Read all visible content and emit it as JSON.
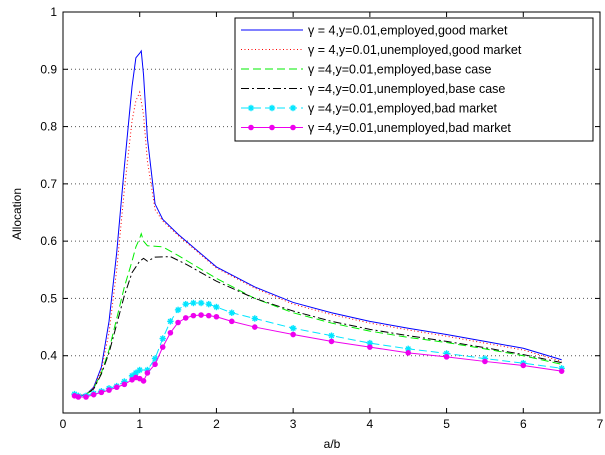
{
  "chart_data": {
    "type": "line",
    "title": "",
    "xlabel": "a/b",
    "ylabel": "Allocation",
    "xlim": [
      0,
      7
    ],
    "ylim": [
      0.3,
      1.0
    ],
    "xticks": [
      0,
      1,
      2,
      3,
      4,
      5,
      6,
      7
    ],
    "yticks": [
      0.4,
      0.5,
      0.6,
      0.7,
      0.8,
      0.9,
      1.0
    ],
    "ytick_labels": [
      "0.4",
      "0.5",
      "0.6",
      "0.7",
      "0.8",
      "0.9",
      "1"
    ],
    "grid": "dotted",
    "legend_position": "top-right",
    "series": [
      {
        "name": "γ = 4,y=0.01,employed,good market",
        "color": "#0000ff",
        "dash": "none",
        "marker": "none",
        "points": [
          [
            0.15,
            0.333
          ],
          [
            0.2,
            0.33
          ],
          [
            0.3,
            0.332
          ],
          [
            0.4,
            0.345
          ],
          [
            0.5,
            0.38
          ],
          [
            0.6,
            0.46
          ],
          [
            0.7,
            0.58
          ],
          [
            0.8,
            0.73
          ],
          [
            0.9,
            0.87
          ],
          [
            0.95,
            0.92
          ],
          [
            1.0,
            0.928
          ],
          [
            1.02,
            0.932
          ],
          [
            1.05,
            0.89
          ],
          [
            1.1,
            0.78
          ],
          [
            1.2,
            0.665
          ],
          [
            1.3,
            0.638
          ],
          [
            1.5,
            0.612
          ],
          [
            2.0,
            0.555
          ],
          [
            2.5,
            0.52
          ],
          [
            3.0,
            0.493
          ],
          [
            3.5,
            0.475
          ],
          [
            4.0,
            0.46
          ],
          [
            4.5,
            0.448
          ],
          [
            5.0,
            0.437
          ],
          [
            5.5,
            0.425
          ],
          [
            6.0,
            0.413
          ],
          [
            6.5,
            0.393
          ]
        ]
      },
      {
        "name": "γ = 4,y=0.01,unemployed,good market",
        "color": "#ff0000",
        "dash": "1,2.5",
        "marker": "none",
        "points": [
          [
            0.15,
            0.333
          ],
          [
            0.2,
            0.33
          ],
          [
            0.3,
            0.332
          ],
          [
            0.4,
            0.345
          ],
          [
            0.5,
            0.375
          ],
          [
            0.6,
            0.44
          ],
          [
            0.7,
            0.55
          ],
          [
            0.8,
            0.69
          ],
          [
            0.9,
            0.81
          ],
          [
            0.95,
            0.845
          ],
          [
            1.0,
            0.86
          ],
          [
            1.05,
            0.82
          ],
          [
            1.1,
            0.74
          ],
          [
            1.2,
            0.655
          ],
          [
            1.3,
            0.635
          ],
          [
            1.5,
            0.61
          ],
          [
            2.0,
            0.553
          ],
          [
            2.5,
            0.518
          ],
          [
            3.0,
            0.49
          ],
          [
            3.5,
            0.472
          ],
          [
            4.0,
            0.457
          ],
          [
            4.5,
            0.445
          ],
          [
            5.0,
            0.434
          ],
          [
            5.5,
            0.422
          ],
          [
            6.0,
            0.41
          ],
          [
            6.5,
            0.39
          ]
        ]
      },
      {
        "name": "γ =4,y=0.01,employed,base case",
        "color": "#00ee00",
        "dash": "8,4",
        "marker": "none",
        "points": [
          [
            0.15,
            0.333
          ],
          [
            0.2,
            0.33
          ],
          [
            0.3,
            0.332
          ],
          [
            0.4,
            0.343
          ],
          [
            0.5,
            0.37
          ],
          [
            0.6,
            0.41
          ],
          [
            0.7,
            0.465
          ],
          [
            0.8,
            0.52
          ],
          [
            0.9,
            0.565
          ],
          [
            0.95,
            0.59
          ],
          [
            1.0,
            0.605
          ],
          [
            1.02,
            0.613
          ],
          [
            1.05,
            0.6
          ],
          [
            1.1,
            0.592
          ],
          [
            1.3,
            0.59
          ],
          [
            1.5,
            0.575
          ],
          [
            2.0,
            0.535
          ],
          [
            2.5,
            0.5
          ],
          [
            3.0,
            0.475
          ],
          [
            3.5,
            0.457
          ],
          [
            4.0,
            0.443
          ],
          [
            4.5,
            0.432
          ],
          [
            5.0,
            0.423
          ],
          [
            5.5,
            0.412
          ],
          [
            6.0,
            0.4
          ],
          [
            6.5,
            0.385
          ]
        ]
      },
      {
        "name": "γ =4,y=0.01,unemployed,base case",
        "color": "#000000",
        "dash": "8,3,2,3",
        "marker": "none",
        "points": [
          [
            0.15,
            0.333
          ],
          [
            0.2,
            0.33
          ],
          [
            0.3,
            0.332
          ],
          [
            0.4,
            0.342
          ],
          [
            0.5,
            0.368
          ],
          [
            0.6,
            0.405
          ],
          [
            0.7,
            0.455
          ],
          [
            0.8,
            0.505
          ],
          [
            0.9,
            0.545
          ],
          [
            0.95,
            0.555
          ],
          [
            1.0,
            0.565
          ],
          [
            1.05,
            0.57
          ],
          [
            1.1,
            0.565
          ],
          [
            1.2,
            0.572
          ],
          [
            1.4,
            0.573
          ],
          [
            1.6,
            0.56
          ],
          [
            2.0,
            0.53
          ],
          [
            2.5,
            0.5
          ],
          [
            3.0,
            0.478
          ],
          [
            3.5,
            0.46
          ],
          [
            4.0,
            0.446
          ],
          [
            4.5,
            0.435
          ],
          [
            5.0,
            0.425
          ],
          [
            5.5,
            0.414
          ],
          [
            6.0,
            0.402
          ],
          [
            6.5,
            0.388
          ]
        ]
      },
      {
        "name": "γ =4,y=0.01,employed,bad market",
        "color": "#00e5ff",
        "dash": "8,4",
        "marker": "star",
        "points": [
          [
            0.15,
            0.333
          ],
          [
            0.2,
            0.33
          ],
          [
            0.3,
            0.33
          ],
          [
            0.4,
            0.334
          ],
          [
            0.5,
            0.338
          ],
          [
            0.6,
            0.343
          ],
          [
            0.7,
            0.347
          ],
          [
            0.8,
            0.355
          ],
          [
            0.9,
            0.365
          ],
          [
            0.95,
            0.37
          ],
          [
            1.0,
            0.375
          ],
          [
            1.1,
            0.375
          ],
          [
            1.2,
            0.395
          ],
          [
            1.3,
            0.43
          ],
          [
            1.4,
            0.46
          ],
          [
            1.5,
            0.48
          ],
          [
            1.6,
            0.49
          ],
          [
            1.7,
            0.492
          ],
          [
            1.8,
            0.492
          ],
          [
            1.9,
            0.49
          ],
          [
            2.0,
            0.485
          ],
          [
            2.2,
            0.475
          ],
          [
            2.5,
            0.465
          ],
          [
            3.0,
            0.448
          ],
          [
            3.5,
            0.435
          ],
          [
            4.0,
            0.422
          ],
          [
            4.5,
            0.412
          ],
          [
            5.0,
            0.404
          ],
          [
            5.5,
            0.395
          ],
          [
            6.0,
            0.387
          ],
          [
            6.5,
            0.378
          ]
        ]
      },
      {
        "name": "γ =4,y=0.01,unemployed,bad market",
        "color": "#ee00ee",
        "dash": "none",
        "marker": "dot",
        "points": [
          [
            0.15,
            0.33
          ],
          [
            0.2,
            0.328
          ],
          [
            0.3,
            0.328
          ],
          [
            0.4,
            0.332
          ],
          [
            0.5,
            0.336
          ],
          [
            0.6,
            0.34
          ],
          [
            0.7,
            0.345
          ],
          [
            0.8,
            0.35
          ],
          [
            0.9,
            0.358
          ],
          [
            0.95,
            0.362
          ],
          [
            1.0,
            0.36
          ],
          [
            1.05,
            0.356
          ],
          [
            1.1,
            0.37
          ],
          [
            1.2,
            0.385
          ],
          [
            1.3,
            0.415
          ],
          [
            1.4,
            0.44
          ],
          [
            1.5,
            0.458
          ],
          [
            1.6,
            0.466
          ],
          [
            1.7,
            0.47
          ],
          [
            1.8,
            0.471
          ],
          [
            1.9,
            0.47
          ],
          [
            2.0,
            0.468
          ],
          [
            2.2,
            0.46
          ],
          [
            2.5,
            0.45
          ],
          [
            3.0,
            0.437
          ],
          [
            3.5,
            0.425
          ],
          [
            4.0,
            0.415
          ],
          [
            4.5,
            0.405
          ],
          [
            5.0,
            0.398
          ],
          [
            5.5,
            0.39
          ],
          [
            6.0,
            0.383
          ],
          [
            6.5,
            0.373
          ]
        ]
      }
    ]
  }
}
